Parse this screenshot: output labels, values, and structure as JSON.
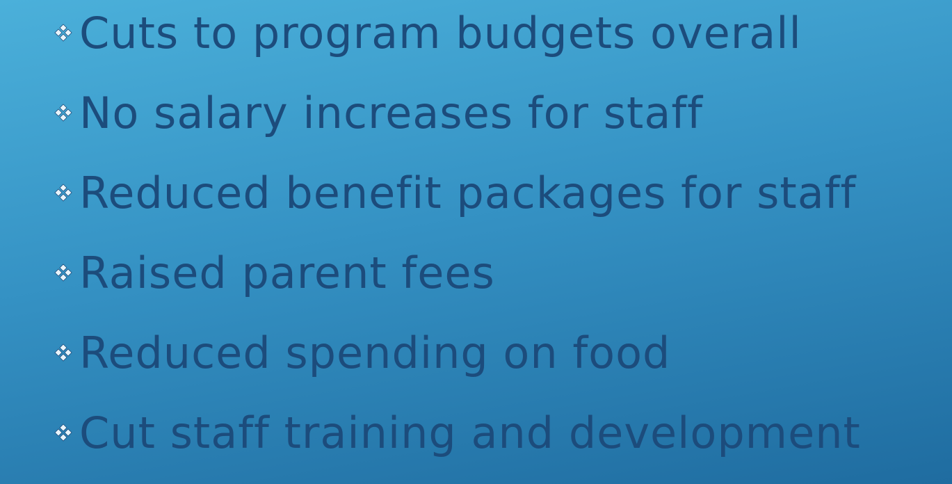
{
  "bullets": [
    "Cuts to program budgets overall",
    "No salary increases for staff",
    "Reduced benefit packages for staff",
    "Raised parent fees",
    "Reduced spending on food",
    "Cut staff training and development"
  ]
}
